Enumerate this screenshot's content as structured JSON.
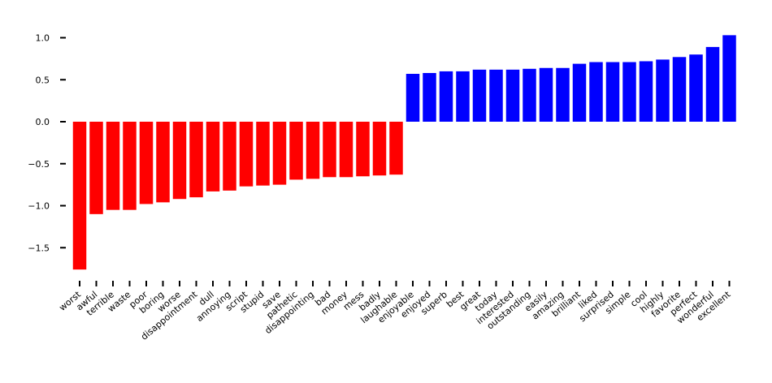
{
  "chart_data": {
    "type": "bar",
    "title": "",
    "xlabel": "",
    "ylabel": "",
    "ylim": [
      -1.85,
      1.07
    ],
    "grid": false,
    "yticks": [
      1.0,
      0.5,
      0.0,
      -0.5,
      -1.0,
      -1.5
    ],
    "ytick_labels": [
      "1.0",
      "0.5",
      "0.0",
      "−0.5",
      "−1.0",
      "−1.5"
    ],
    "categories": [
      "worst",
      "awful",
      "terrible",
      "waste",
      "poor",
      "boring",
      "worse",
      "disappointment",
      "dull",
      "annoying",
      "script",
      "stupid",
      "save",
      "pathetic",
      "disappointing",
      "bad",
      "money",
      "mess",
      "badly",
      "laughable",
      "enjoyable",
      "enjoyed",
      "superb",
      "best",
      "great",
      "today",
      "interested",
      "outstanding",
      "easily",
      "amazing",
      "brilliant",
      "liked",
      "surprised",
      "simple",
      "cool",
      "highly",
      "favorite",
      "perfect",
      "wonderful",
      "excellent"
    ],
    "values": [
      -1.76,
      -1.1,
      -1.05,
      -1.05,
      -0.98,
      -0.96,
      -0.92,
      -0.9,
      -0.83,
      -0.82,
      -0.77,
      -0.76,
      -0.75,
      -0.69,
      -0.68,
      -0.66,
      -0.66,
      -0.65,
      -0.64,
      -0.63,
      0.57,
      0.58,
      0.6,
      0.6,
      0.62,
      0.62,
      0.62,
      0.63,
      0.64,
      0.64,
      0.69,
      0.71,
      0.71,
      0.71,
      0.72,
      0.74,
      0.77,
      0.8,
      0.89,
      1.03
    ],
    "colors": {
      "negative": "#ff0000",
      "positive": "#0000ff"
    }
  }
}
